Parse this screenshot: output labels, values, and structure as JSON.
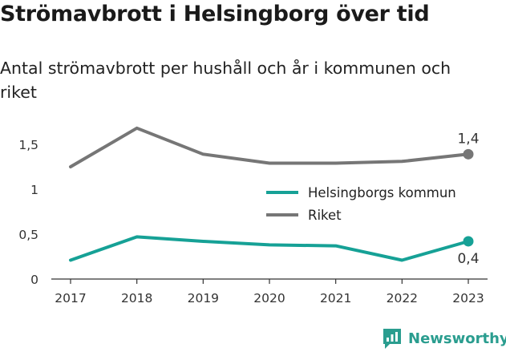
{
  "title": "Strömavbrott i Helsingborg över tid",
  "subtitle": "Antal strömavbrott per hushåll och år i kommunen och riket",
  "brand": "Newsworthy",
  "colors": {
    "kommun": "#16a196",
    "riket": "#767676"
  },
  "chart_data": {
    "type": "line",
    "x": [
      2017,
      2018,
      2019,
      2020,
      2021,
      2022,
      2023
    ],
    "x_tick_labels": [
      "2017",
      "2018",
      "2019",
      "2020",
      "2021",
      "2022",
      "2023"
    ],
    "y_tick_values": [
      0,
      0.5,
      1,
      1.5
    ],
    "y_tick_labels": [
      "0",
      "0,5",
      "1",
      "1,5"
    ],
    "ylim": [
      0,
      1.75
    ],
    "grid": false,
    "legend_position": "right",
    "series": [
      {
        "name": "Helsingborgs kommun",
        "values": [
          0.21,
          0.47,
          0.42,
          0.38,
          0.37,
          0.21,
          0.42
        ],
        "end_label": "0,4",
        "end_label_position": "below",
        "color": "#16a196"
      },
      {
        "name": "Riket",
        "values": [
          1.25,
          1.68,
          1.39,
          1.29,
          1.29,
          1.31,
          1.39
        ],
        "end_label": "1,4",
        "end_label_position": "above",
        "color": "#767676"
      }
    ]
  }
}
